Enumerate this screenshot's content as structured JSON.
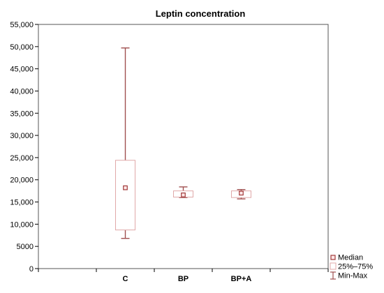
{
  "colors": {
    "plot_border": "#555555",
    "whisker": "#a05050",
    "box_stroke": "#e0a8a8",
    "box_fill": "#ffffff",
    "median_stroke": "#a03838",
    "median_fill": "#ffe8e8",
    "tick_line": "#000000",
    "background": "#ffffff"
  },
  "legend": {
    "median_label": "Median",
    "box_label": "25%–75%",
    "minmax_label": "Min-Max",
    "median_icon": "square-marker-icon",
    "box_icon": "box-range-icon",
    "minmax_icon": "whisker-icon"
  },
  "chart_data": {
    "type": "box",
    "title": "Leptin concentration",
    "xlabel": "",
    "ylabel": "",
    "ylim": [
      0,
      55000
    ],
    "y_ticks": [
      0,
      5000,
      10000,
      15000,
      20000,
      25000,
      30000,
      35000,
      40000,
      45000,
      50000,
      55000
    ],
    "y_tick_labels": [
      "0",
      "5000",
      "10,000",
      "15,000",
      "20,000",
      "25,000",
      "30,000",
      "35,000",
      "40,000",
      "45,000",
      "50,000",
      "55,000"
    ],
    "grid": false,
    "legend_position": "bottom-right outside",
    "categories": [
      "",
      "C",
      "BP",
      "BP+A",
      ""
    ],
    "series": [
      {
        "category": "C",
        "min": 6800,
        "q1": 8700,
        "median": 18200,
        "q3": 24400,
        "max": 49700
      },
      {
        "category": "BP",
        "min": 16000,
        "q1": 16100,
        "median": 16600,
        "q3": 17500,
        "max": 18400
      },
      {
        "category": "BP+A",
        "min": 15700,
        "q1": 16000,
        "median": 17000,
        "q3": 17500,
        "max": 17800
      }
    ]
  }
}
